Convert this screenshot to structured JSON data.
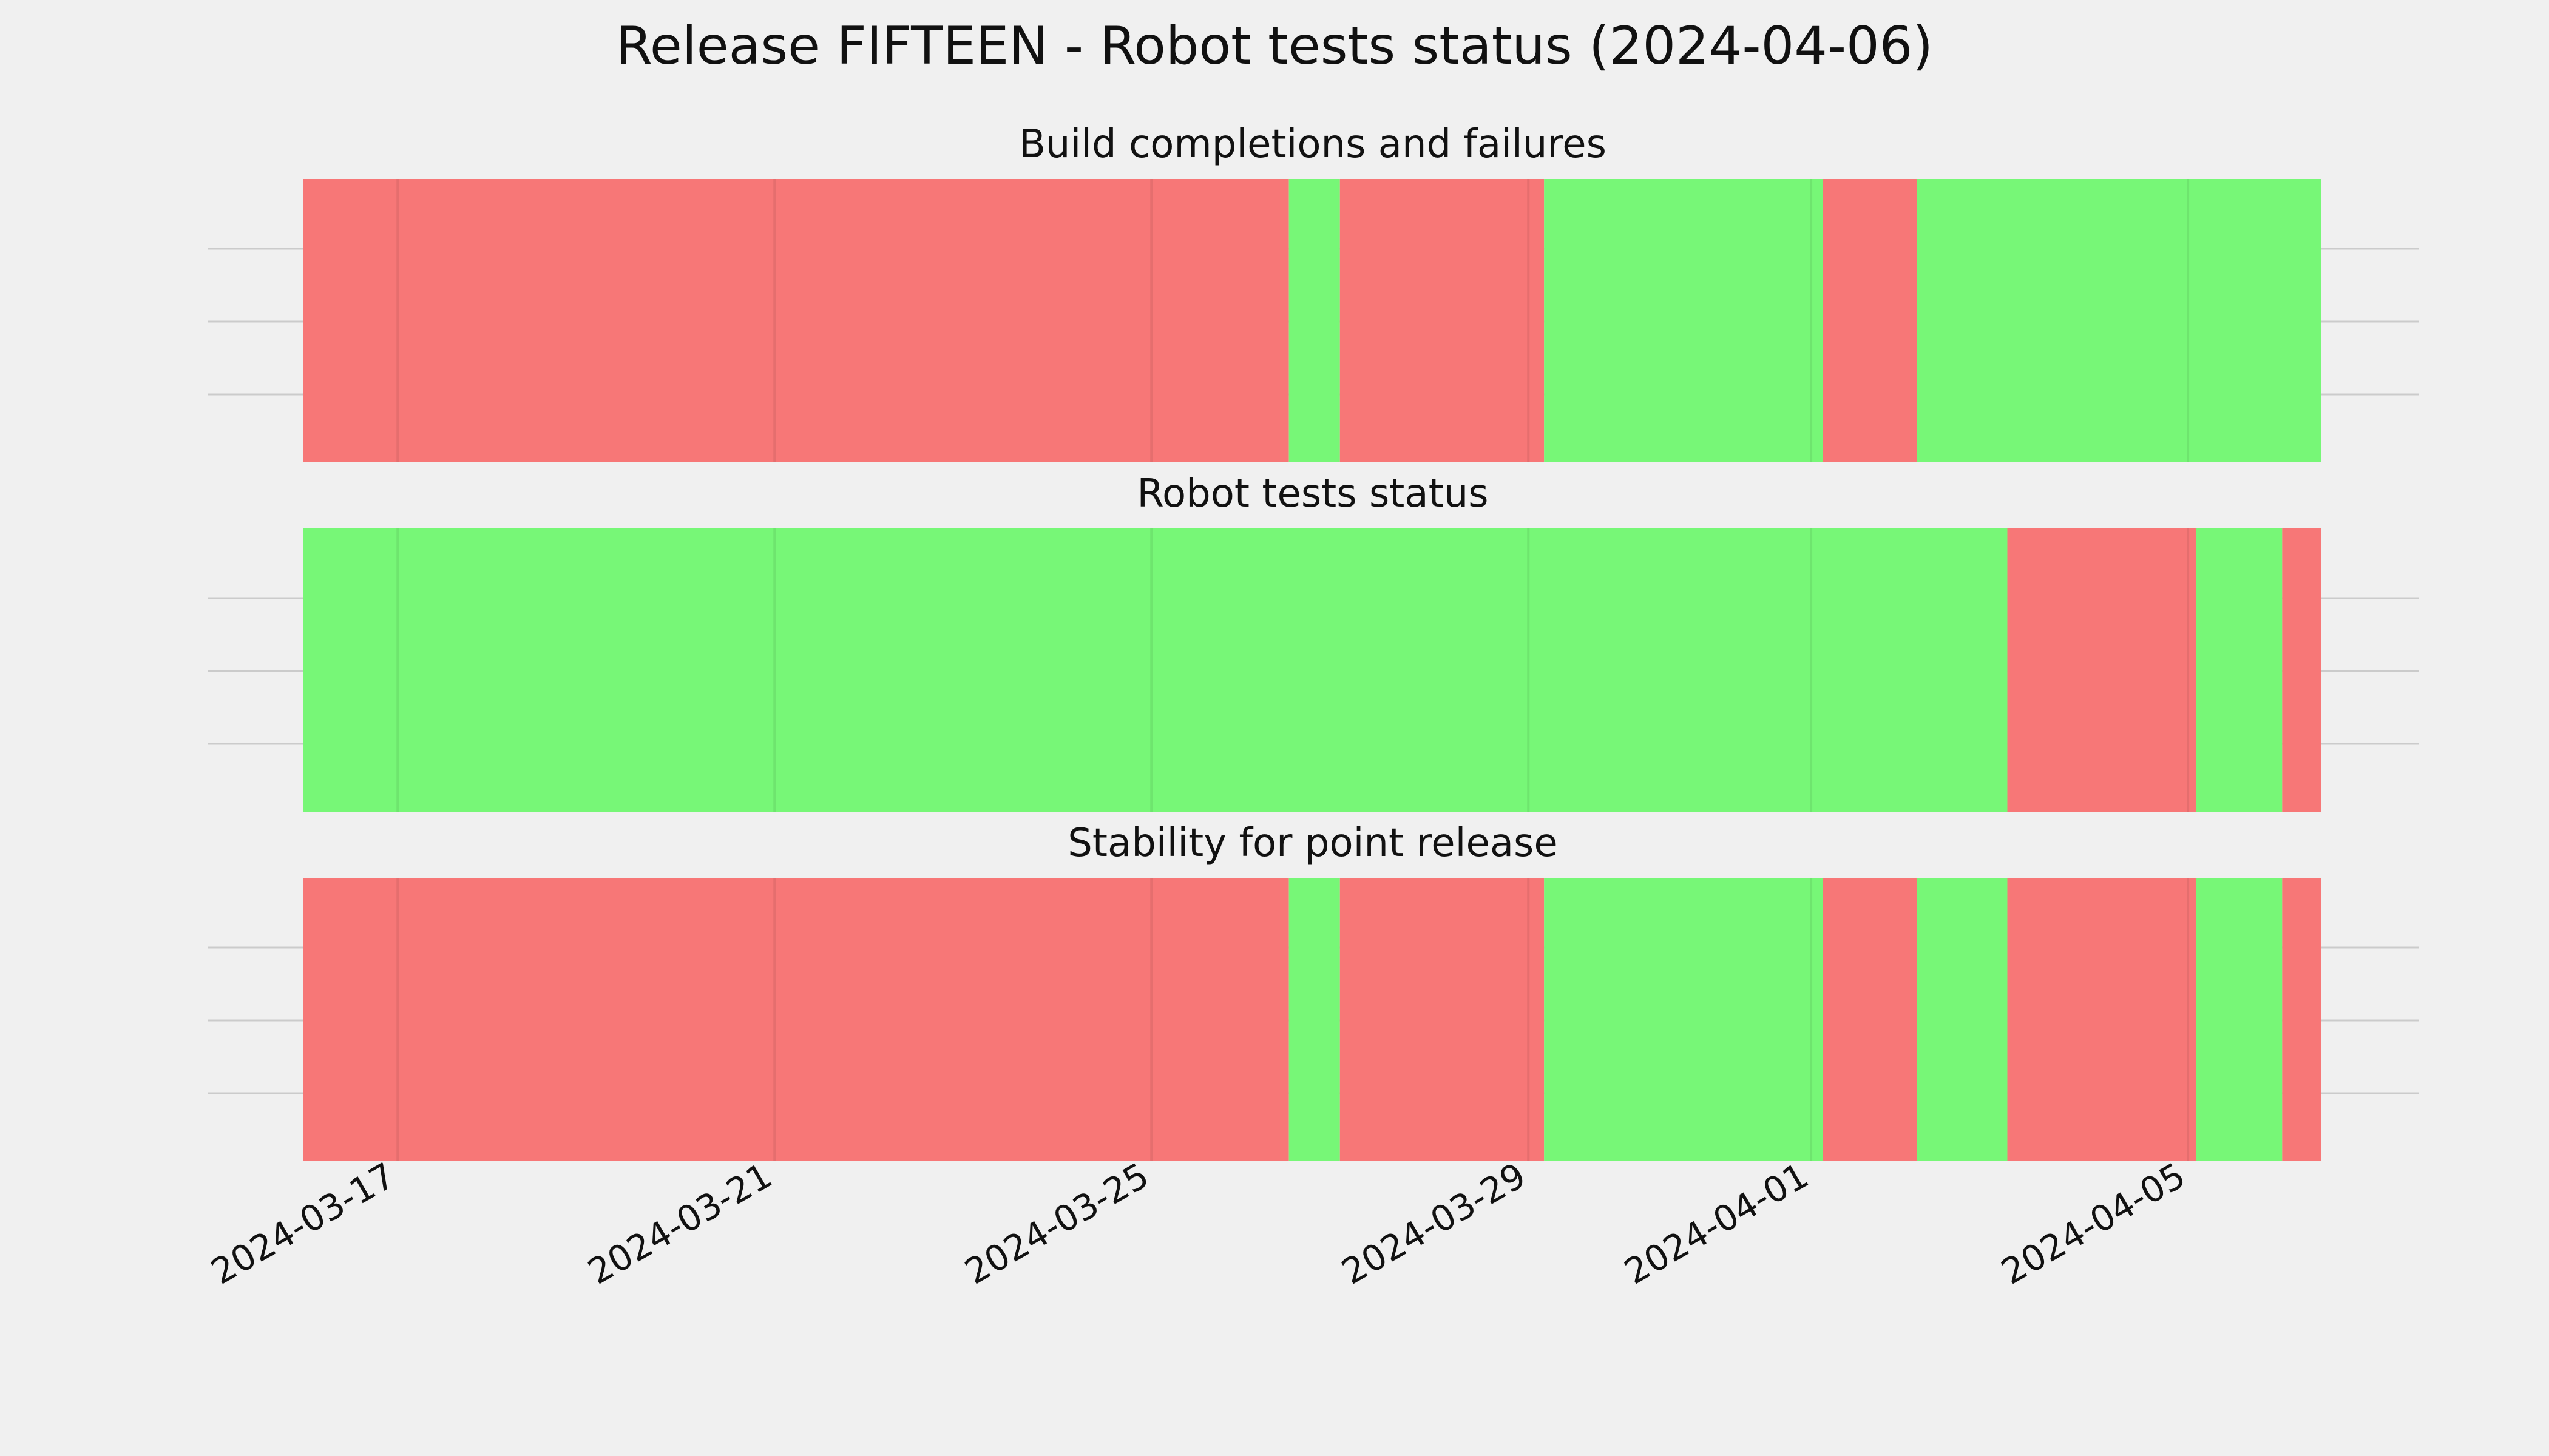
{
  "chart_data": {
    "type": "timeline",
    "title": "Release FIFTEEN - Robot tests status (2024-04-06)",
    "x_range": [
      "2024-03-16T00:00",
      "2024-04-06T10:00"
    ],
    "x_ticks": [
      "2024-03-17",
      "2024-03-21",
      "2024-03-25",
      "2024-03-29",
      "2024-04-01",
      "2024-04-05"
    ],
    "grid": true,
    "colors": {
      "pass": "#77f777",
      "fail": "#f77777"
    },
    "panels": [
      {
        "title": "Build completions and failures",
        "segments": [
          {
            "start": "2024-03-16T00:00",
            "end": "2024-03-26T11:00",
            "status": "fail"
          },
          {
            "start": "2024-03-26T11:00",
            "end": "2024-03-27T00:00",
            "status": "pass"
          },
          {
            "start": "2024-03-27T00:00",
            "end": "2024-03-29T04:00",
            "status": "fail"
          },
          {
            "start": "2024-03-29T04:00",
            "end": "2024-04-01T03:00",
            "status": "pass"
          },
          {
            "start": "2024-04-01T03:00",
            "end": "2024-04-02T03:00",
            "status": "fail"
          },
          {
            "start": "2024-04-02T03:00",
            "end": "2024-04-06T10:00",
            "status": "pass"
          }
        ]
      },
      {
        "title": "Robot tests status",
        "segments": [
          {
            "start": "2024-03-16T00:00",
            "end": "2024-04-03T02:00",
            "status": "pass"
          },
          {
            "start": "2024-04-03T02:00",
            "end": "2024-04-05T02:00",
            "status": "fail"
          },
          {
            "start": "2024-04-05T02:00",
            "end": "2024-04-06T00:00",
            "status": "pass"
          },
          {
            "start": "2024-04-06T00:00",
            "end": "2024-04-06T10:00",
            "status": "fail"
          }
        ]
      },
      {
        "title": "Stability for point release",
        "segments": [
          {
            "start": "2024-03-16T00:00",
            "end": "2024-03-26T11:00",
            "status": "fail"
          },
          {
            "start": "2024-03-26T11:00",
            "end": "2024-03-27T00:00",
            "status": "pass"
          },
          {
            "start": "2024-03-27T00:00",
            "end": "2024-03-29T04:00",
            "status": "fail"
          },
          {
            "start": "2024-03-29T04:00",
            "end": "2024-04-01T03:00",
            "status": "pass"
          },
          {
            "start": "2024-04-01T03:00",
            "end": "2024-04-02T03:00",
            "status": "fail"
          },
          {
            "start": "2024-04-02T03:00",
            "end": "2024-04-03T02:00",
            "status": "pass"
          },
          {
            "start": "2024-04-03T02:00",
            "end": "2024-04-05T02:00",
            "status": "fail"
          },
          {
            "start": "2024-04-05T02:00",
            "end": "2024-04-06T00:00",
            "status": "pass"
          },
          {
            "start": "2024-04-06T00:00",
            "end": "2024-04-06T10:00",
            "status": "fail"
          }
        ]
      }
    ]
  }
}
